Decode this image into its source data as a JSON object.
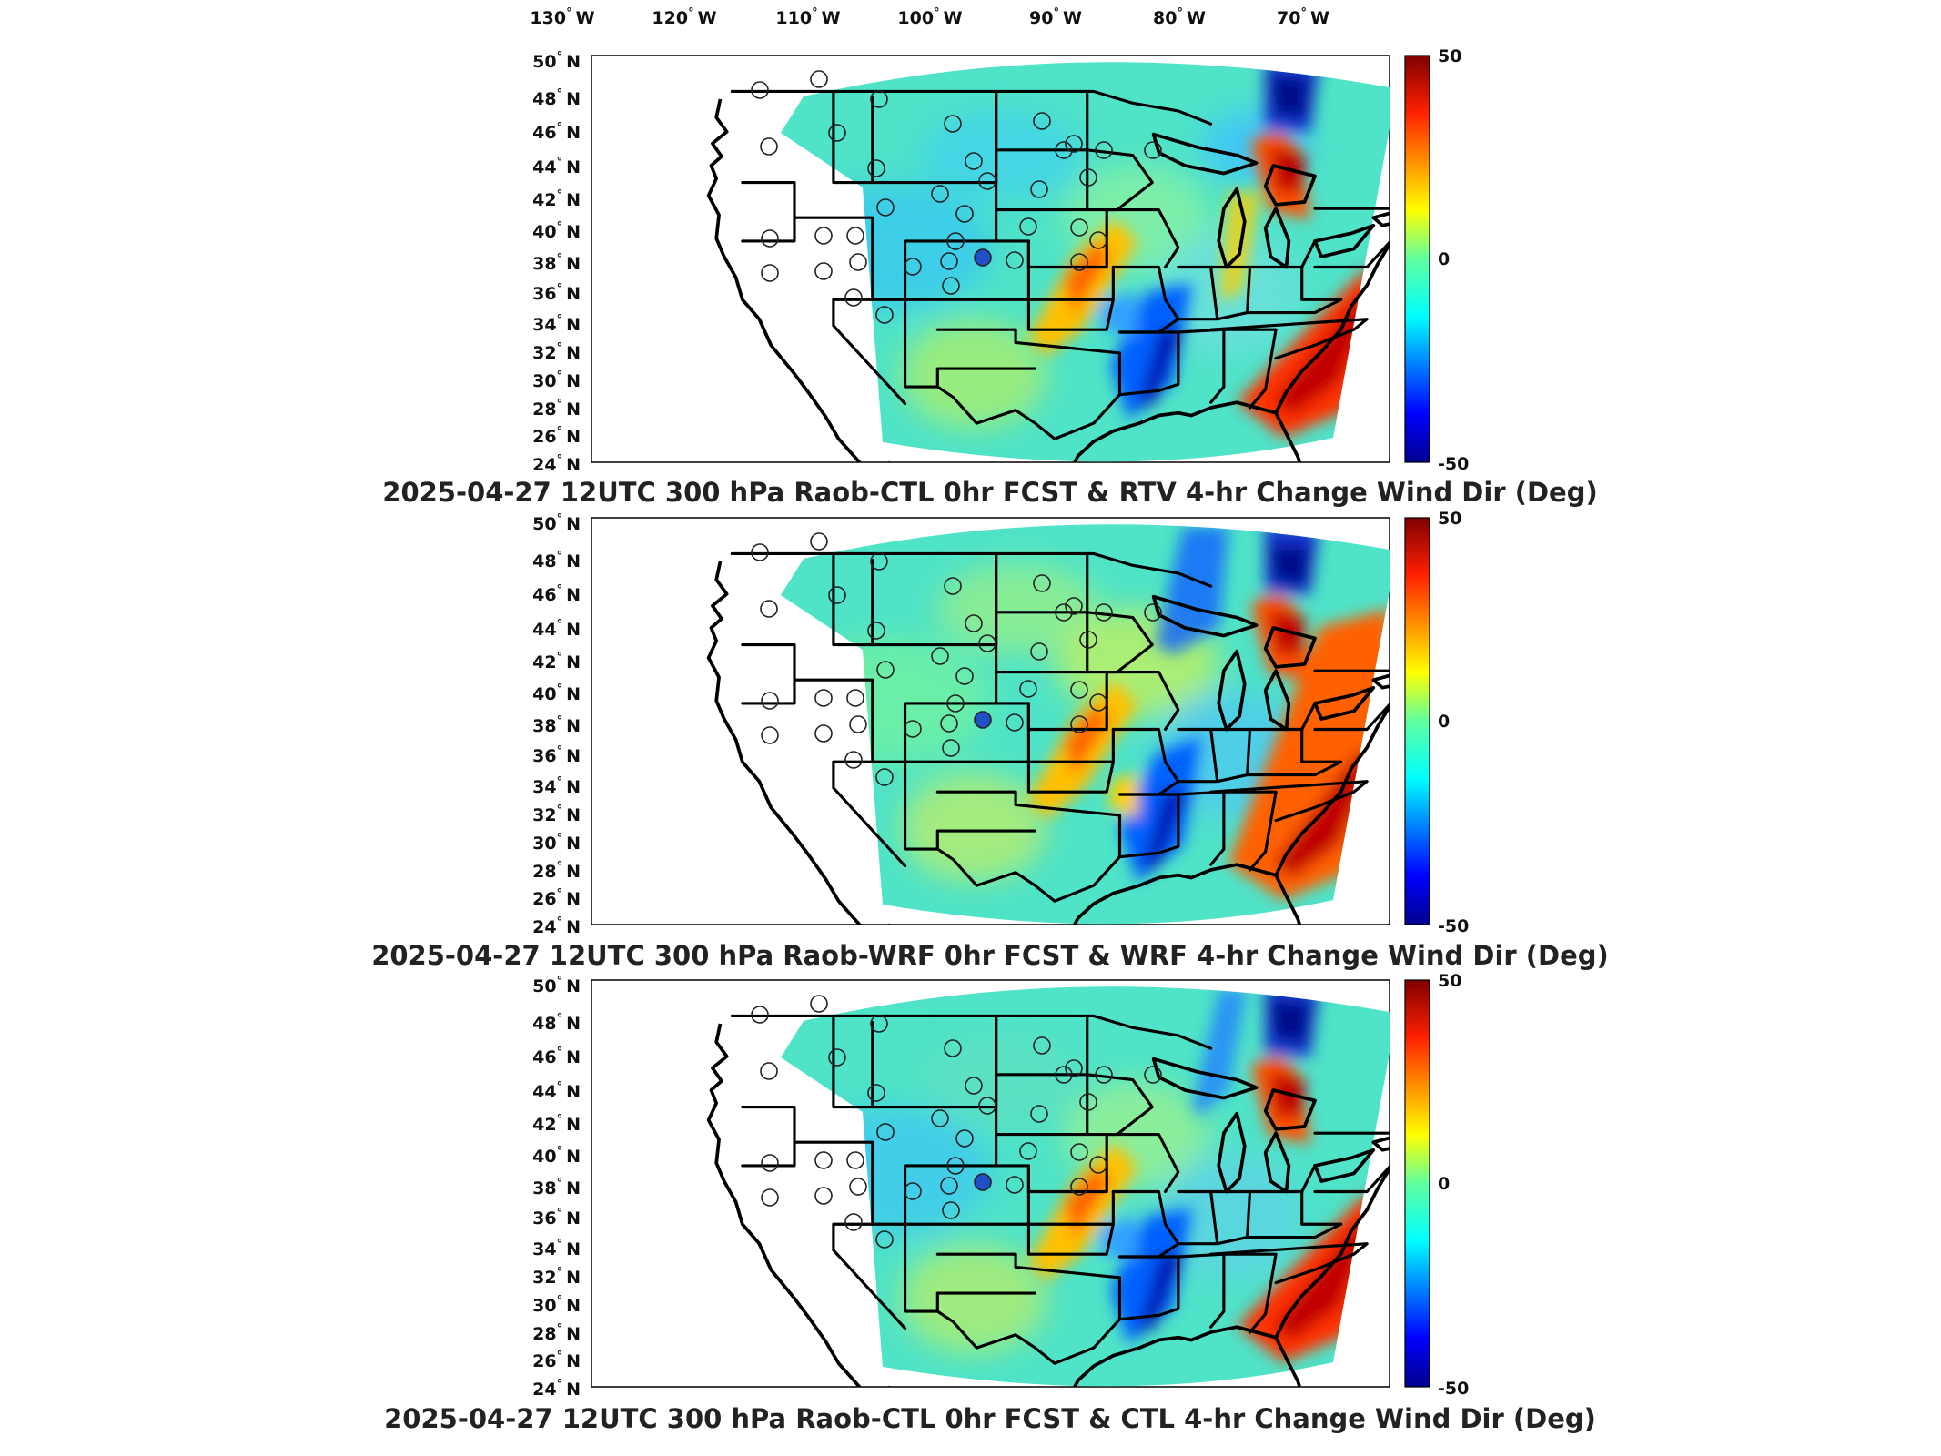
{
  "lon_labels": [
    "130",
    "120",
    "110",
    "100",
    "90",
    "80",
    "70"
  ],
  "lon_suffix": "W",
  "lat_labels": [
    "50",
    "48",
    "46",
    "44",
    "42",
    "40",
    "38",
    "36",
    "34",
    "32",
    "30",
    "28",
    "26",
    "24"
  ],
  "lat_suffix": "N",
  "deg": "°",
  "panels": [
    {
      "title": "2025-04-27 12UTC 300 hPa Raob-CTL 0hr FCST & RTV 4-hr Change Wind Dir (Deg)",
      "colorbar": {
        "max": "50",
        "mid": "0",
        "min": "-50"
      }
    },
    {
      "title": "2025-04-27 12UTC 300 hPa Raob-WRF 0hr FCST & WRF 4-hr Change Wind Dir (Deg)",
      "colorbar": {
        "max": "50",
        "mid": "0",
        "min": "-50"
      }
    },
    {
      "title": "2025-04-27 12UTC 300 hPa Raob-CTL 0hr FCST & CTL 4-hr Change Wind Dir (Deg)",
      "colorbar": {
        "max": "50",
        "mid": "0",
        "min": "-50"
      }
    }
  ],
  "colors": {
    "jet": [
      "#00008f",
      "#0000ff",
      "#0080ff",
      "#00ffff",
      "#80ff80",
      "#ffff00",
      "#ff8000",
      "#ff0000",
      "#800000"
    ],
    "domain_base": "#4fe3c8"
  }
}
